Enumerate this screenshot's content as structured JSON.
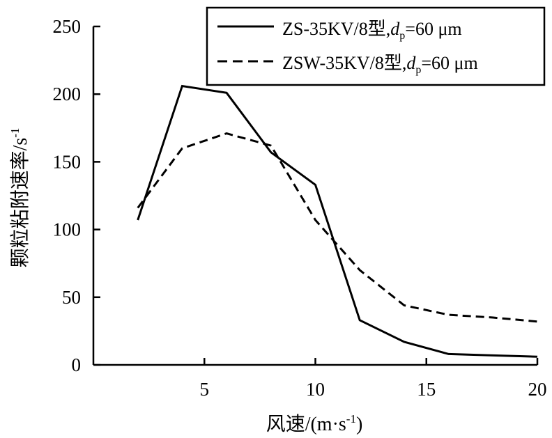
{
  "chart_data": {
    "type": "line",
    "xlabel": "风速/(m·s",
    "xlabel_sup": "-1",
    "xlabel_end": ")",
    "ylabel": "颗粒粘附速率/s",
    "ylabel_sup": "-1",
    "xlim": [
      0,
      20
    ],
    "ylim": [
      0,
      250
    ],
    "x_ticks": [
      5,
      10,
      15,
      20
    ],
    "y_ticks": [
      0,
      50,
      100,
      150,
      200,
      250
    ],
    "grid": false,
    "legend_position": "top-right",
    "series": [
      {
        "name": "ZS-35KV/8型,dp=60 μm",
        "legend": {
          "prefix": "ZS-35KV/8型,",
          "var": "d",
          "sub": "p",
          "suffix": "=60 μm"
        },
        "style": "solid",
        "color": "#000000",
        "x": [
          2,
          4,
          6,
          8,
          10,
          12,
          14,
          16,
          18,
          20
        ],
        "y": [
          107,
          206,
          201,
          157,
          133,
          33,
          17,
          8,
          7,
          6
        ]
      },
      {
        "name": "ZSW-35KV/8型,dp=60 μm",
        "legend": {
          "prefix": "ZSW-35KV/8型,",
          "var": "d",
          "sub": "p",
          "suffix": "=60 μm"
        },
        "style": "dashed",
        "color": "#000000",
        "x": [
          2,
          4,
          6,
          8,
          10,
          12,
          14,
          16,
          18,
          20
        ],
        "y": [
          116,
          160,
          171,
          162,
          107,
          70,
          44,
          37,
          35,
          32
        ]
      }
    ]
  }
}
